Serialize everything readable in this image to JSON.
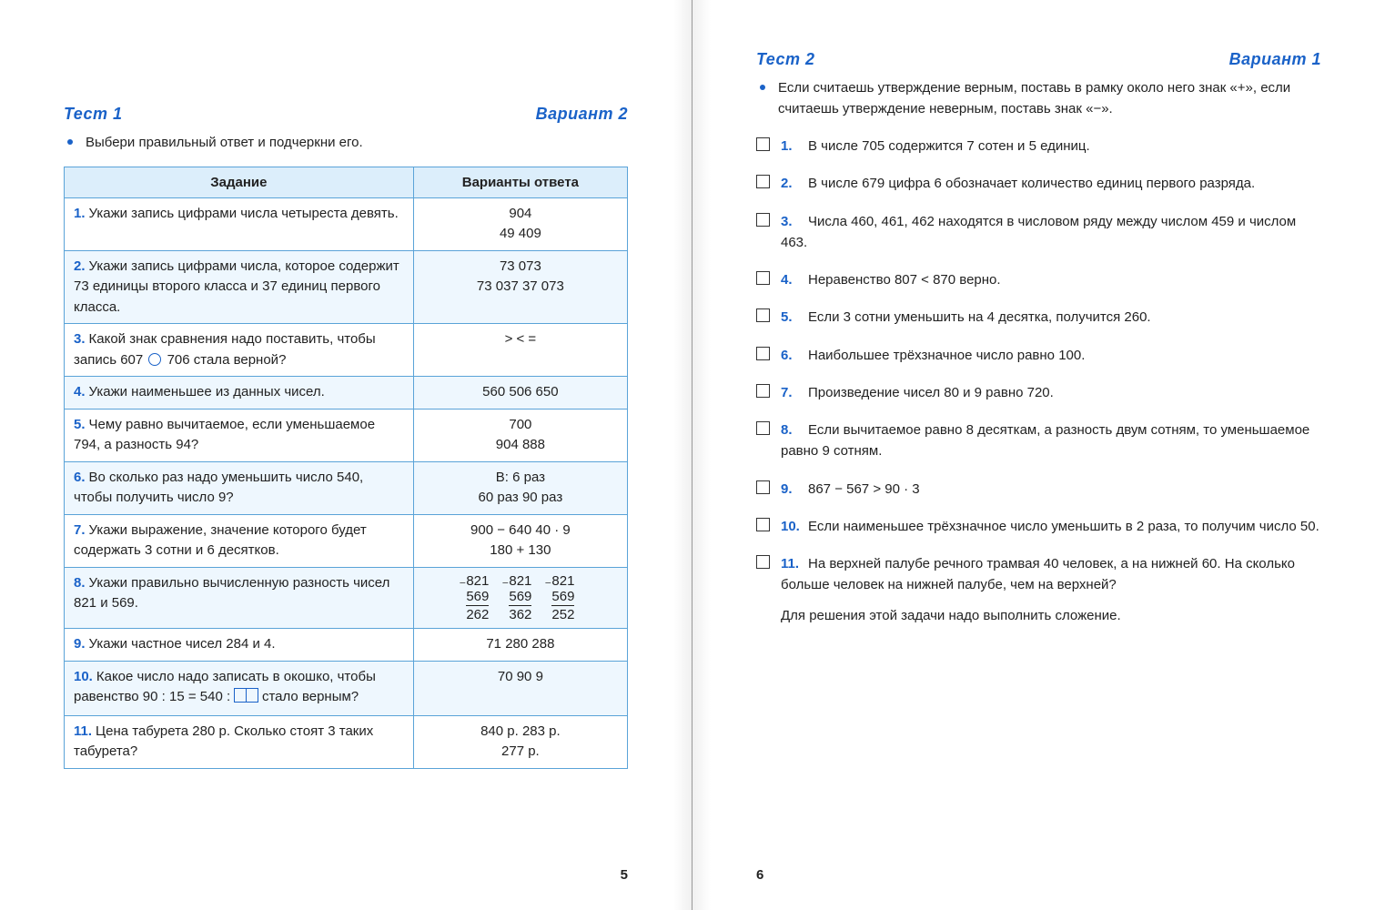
{
  "colors": {
    "accent": "#1a62c8",
    "tableBorder": "#5aa3d8",
    "shadeLight": "#eef7fe",
    "shadeHeader": "#dceefb",
    "text": "#222222",
    "background": "#ffffff"
  },
  "leftPage": {
    "testTitle": "Тест 1",
    "variantTitle": "Вариант 2",
    "instruction": "Выбери правильный ответ и подчеркни его.",
    "pageNumber": "5",
    "tableHeaders": {
      "task": "Задание",
      "answers": "Варианты ответа"
    },
    "rows": [
      {
        "n": "1.",
        "task": "Укажи запись цифрами числа четыреста девять.",
        "answers": "904\n49       409",
        "shaded": false
      },
      {
        "n": "2.",
        "task": "Укажи запись цифрами числа, которое содержит 73 единицы второго класса и 37 единиц первого класса.",
        "answers": "73 073\n73 037     37 073",
        "shaded": true
      },
      {
        "n": "3.",
        "task": "Какой знак сравнения надо поставить, чтобы запись 607 ◯ 706 стала верной?",
        "answers": ">    <    =",
        "shaded": false,
        "hasCircle": true
      },
      {
        "n": "4.",
        "task": "Укажи наименьшее из данных чисел.",
        "answers": "560    506    650",
        "shaded": true
      },
      {
        "n": "5.",
        "task": "Чему равно вычитаемое, если уменьшаемое 794, а разность 94?",
        "answers": "700\n904     888",
        "shaded": false
      },
      {
        "n": "6.",
        "task": "Во сколько раз надо уменьшить число 540, чтобы получить число 9?",
        "answers": "В: 6 раз\n60 раз   90 раз",
        "shaded": true
      },
      {
        "n": "7.",
        "task": "Укажи выражение, значение которого будет содержать 3 сотни и 6 десятков.",
        "answers": "900 − 640    40 · 9\n180 + 130",
        "shaded": false
      },
      {
        "n": "8.",
        "task": "Укажи правильно вычисленную разность чисел 821 и 569.",
        "answers": "",
        "shaded": true,
        "subtract": [
          {
            "top": "821",
            "mid": "569",
            "res": "262"
          },
          {
            "top": "821",
            "mid": "569",
            "res": "362"
          },
          {
            "top": "821",
            "mid": "569",
            "res": "252"
          }
        ]
      },
      {
        "n": "9.",
        "task": "Укажи частное чисел 284 и 4.",
        "answers": "71    280    288",
        "shaded": false
      },
      {
        "n": "10.",
        "task": "Какое число надо записать в окошко, чтобы равенство  90 : 15 = 540 : ☐☐  стало верным?",
        "answers": "70     90     9",
        "shaded": true,
        "hasBoxes": true
      },
      {
        "n": "11.",
        "task": "Цена табурета 280 р. Сколько стоят 3 таких табурета?",
        "answers": "840 р.     283 р.\n277 р.",
        "shaded": false
      }
    ]
  },
  "rightPage": {
    "testTitle": "Тест 2",
    "variantTitle": "Вариант 1",
    "instruction": "Если считаешь утверждение верным, поставь в рамку около него знак «+», если считаешь утверждение неверным, поставь знак «−».",
    "pageNumber": "6",
    "items": [
      {
        "n": "1.",
        "text": "В числе 705 содержится 7 сотен и 5 единиц."
      },
      {
        "n": "2.",
        "text": "В числе 679 цифра 6 обозначает количество единиц первого разряда."
      },
      {
        "n": "3.",
        "text": "Числа 460, 461, 462 находятся в числовом ряду между числом 459 и числом 463."
      },
      {
        "n": "4.",
        "text": "Неравенство 807 < 870 верно."
      },
      {
        "n": "5.",
        "text": "Если 3 сотни уменьшить на 4 десятка, получится 260."
      },
      {
        "n": "6.",
        "text": "Наибольшее трёхзначное число равно 100."
      },
      {
        "n": "7.",
        "text": "Произведение чисел 80 и 9 равно 720."
      },
      {
        "n": "8.",
        "text": "Если вычитаемое равно 8 десяткам, а разность двум сотням, то уменьшаемое равно 9 сотням."
      },
      {
        "n": "9.",
        "text": "867 − 567 > 90 · 3"
      },
      {
        "n": "10.",
        "text": "Если наименьшее трёхзначное число уменьшить в 2 раза, то получим число 50."
      },
      {
        "n": "11.",
        "text": "На верхней палубе речного трамвая 40 человек, а на нижней 60. На сколько больше человек на нижней палубе, чем на верхней?",
        "extra": "Для решения этой задачи надо выполнить сложение."
      }
    ]
  }
}
